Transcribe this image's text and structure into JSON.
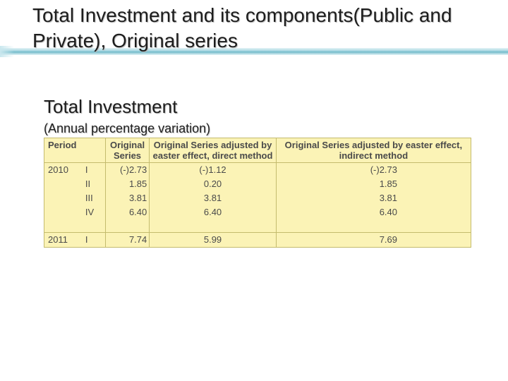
{
  "slide": {
    "title": "Total Investment and its components(Public and Private), Original series",
    "section_title": "Total Investment",
    "section_subtitle": "(Annual percentage variation)"
  },
  "table": {
    "headers": {
      "period": "Period",
      "original": "Original Series",
      "direct": "Original Series adjusted by easter effect, direct method",
      "indirect": "Original Series adjusted by easter effect, indirect method"
    },
    "rows": [
      {
        "year": "2010",
        "quarter": "I",
        "original": "(-)2.73",
        "direct": "(-)1.12",
        "indirect": "(-)2.73"
      },
      {
        "year": "",
        "quarter": "II",
        "original": "1.85",
        "direct": "0.20",
        "indirect": "1.85"
      },
      {
        "year": "",
        "quarter": "III",
        "original": "3.81",
        "direct": "3.81",
        "indirect": "3.81"
      },
      {
        "year": "",
        "quarter": "IV",
        "original": "6.40",
        "direct": "6.40",
        "indirect": "6.40"
      },
      {
        "year": "2011",
        "quarter": "I",
        "original": "7.74",
        "direct": "5.99",
        "indirect": "7.69"
      }
    ]
  },
  "colors": {
    "table_background": "#fbf3b6",
    "table_border": "#c4bb6e",
    "accent_line": "#6fb9c9"
  }
}
